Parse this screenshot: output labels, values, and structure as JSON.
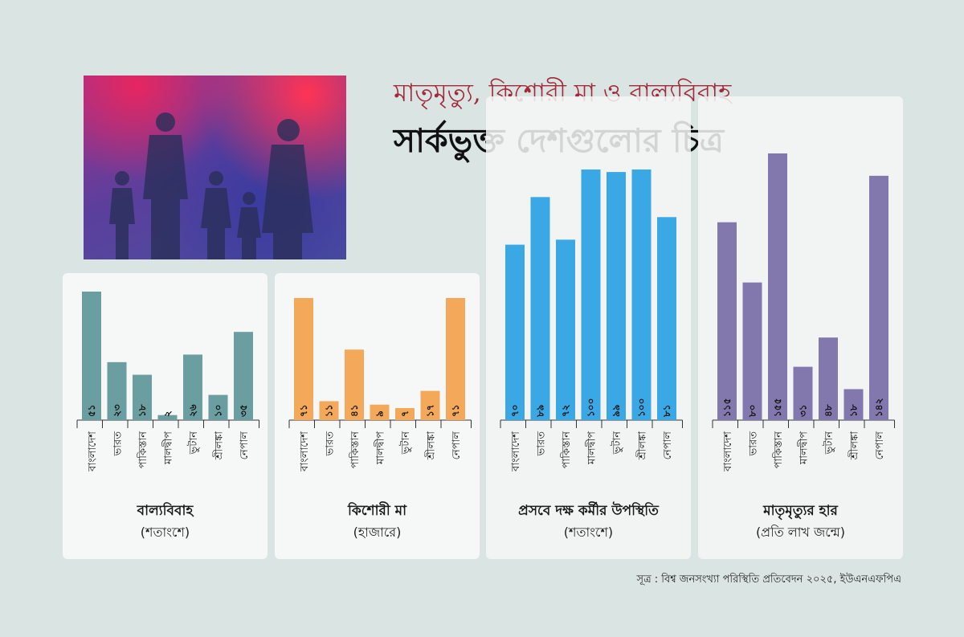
{
  "header": {
    "subtitle": "মাতৃমৃত্যু, কিশোরী মা ও বাল্যবিবাহ",
    "title": "সার্কভুক্ত দেশগুলোর চিত্র"
  },
  "colors": {
    "child_marriage": "#6a9ea0",
    "teen_mothers": "#f4a95a",
    "skilled_birth": "#3aa8e4",
    "maternal_mortality": "#8378ad"
  },
  "chart_data": [
    {
      "type": "bar",
      "title": "বাল্যবিবাহ",
      "ylabel": "(শতাংশে)",
      "categories": [
        "বাংলাদেশ",
        "ভারত",
        "পাকিস্তান",
        "মালদ্বীপ",
        "ভুটান",
        "শ্রীলঙ্কা",
        "নেপাল"
      ],
      "values": [
        51,
        23,
        18,
        2,
        26,
        10,
        35
      ],
      "value_labels": [
        "৫১",
        "২৩",
        "১৮",
        "২",
        "২৬",
        "১০",
        "৩৫"
      ]
    },
    {
      "type": "bar",
      "title": "কিশোরী মা",
      "ylabel": "(হাজারে)",
      "categories": [
        "বাংলাদেশ",
        "ভারত",
        "পাকিস্তান",
        "মালদ্বীপ",
        "ভুটান",
        "শ্রীলঙ্কা",
        "নেপাল"
      ],
      "values": [
        71,
        11,
        41,
        9,
        7,
        17,
        71
      ],
      "value_labels": [
        "৭১",
        "১১",
        "৪১",
        "৯",
        "৭",
        "১৭",
        "৭১"
      ]
    },
    {
      "type": "bar",
      "title": "প্রসবে দক্ষ কর্মীর উপস্থিতি",
      "ylabel": "(শতাংশে)",
      "categories": [
        "বাংলাদেশ",
        "ভারত",
        "পাকিস্তান",
        "মালদ্বীপ",
        "ভুটান",
        "শ্রীলঙ্কা",
        "নেপাল"
      ],
      "values": [
        70,
        89,
        72,
        100,
        99,
        100,
        81
      ],
      "value_labels": [
        "৭০",
        "৮৯",
        "৭২",
        "১০০",
        "৯৯",
        "১০০",
        "৮১"
      ]
    },
    {
      "type": "bar",
      "title": "মাতৃমৃত্যুর হার",
      "ylabel": "(প্রতি লাখ জন্মে)",
      "categories": [
        "বাংলাদেশ",
        "ভারত",
        "পাকিস্তান",
        "মালদ্বীপ",
        "ভুটান",
        "শ্রীলঙ্কা",
        "নেপাল"
      ],
      "values": [
        115,
        80,
        155,
        31,
        48,
        18,
        142
      ],
      "value_labels": [
        "১১৫",
        "৮০",
        "১৫৫",
        "৩১",
        "৪৮",
        "১৮",
        "১৪২"
      ]
    }
  ],
  "source": "সূত্র : বিশ্ব জনসংখ্যা পরিস্থিতি প্রতিবেদন ২০২৫, ইউএনএফপিএ"
}
